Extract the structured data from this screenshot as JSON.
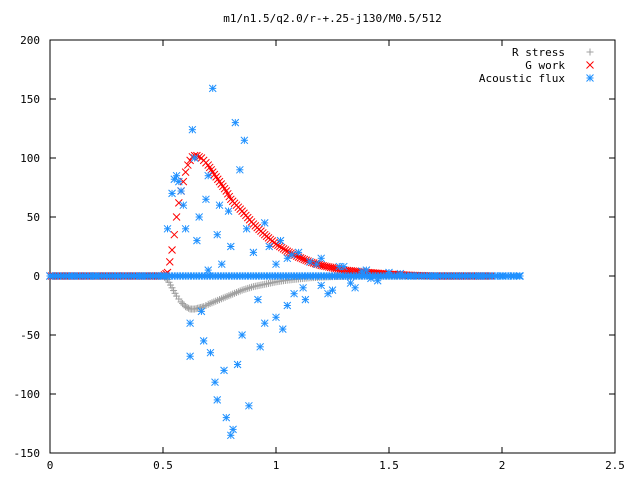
{
  "chart_data": {
    "type": "scatter",
    "title": "m1/n1.5/q2.0/r-+.25-j130/M0.5/512",
    "xlabel": "",
    "ylabel": "",
    "xlim": [
      0,
      2.5
    ],
    "ylim": [
      -150,
      200
    ],
    "x_ticks": [
      0,
      0.5,
      1,
      1.5,
      2,
      2.5
    ],
    "x_tick_labels": [
      "0",
      "0.5",
      "1",
      "1.5",
      "2",
      "2.5"
    ],
    "y_ticks": [
      -150,
      -100,
      -50,
      0,
      50,
      100,
      150,
      200
    ],
    "y_tick_labels": [
      "-150",
      "-100",
      "-50",
      "0",
      "50",
      "100",
      "150",
      "200"
    ],
    "grid": false,
    "legend_position": "top-right",
    "series": [
      {
        "name": "R stress",
        "marker": "plus",
        "color": "#a0a0a0",
        "x": [
          0.0,
          0.2,
          0.4,
          0.5,
          0.52,
          0.54,
          0.56,
          0.58,
          0.6,
          0.62,
          0.64,
          0.66,
          0.68,
          0.7,
          0.75,
          0.8,
          0.85,
          0.9,
          0.95,
          1.0,
          1.05,
          1.1,
          1.15,
          1.2,
          1.25,
          1.3,
          1.35,
          1.4,
          1.5,
          1.6,
          1.7,
          1.8,
          1.9,
          1.95
        ],
        "y": [
          0,
          0,
          0,
          0,
          -3,
          -10,
          -17,
          -22,
          -26,
          -28,
          -28,
          -27,
          -26,
          -24,
          -20,
          -16,
          -12,
          -9,
          -7,
          -5,
          -3.5,
          -2.5,
          -1.5,
          -1,
          -0.5,
          -0.3,
          0,
          0,
          0,
          0,
          0,
          0,
          0,
          0
        ]
      },
      {
        "name": "G work",
        "marker": "cross",
        "color": "#ff0000",
        "x": [
          0.0,
          0.2,
          0.4,
          0.5,
          0.52,
          0.53,
          0.54,
          0.55,
          0.56,
          0.57,
          0.58,
          0.59,
          0.6,
          0.61,
          0.62,
          0.63,
          0.64,
          0.65,
          0.66,
          0.67,
          0.68,
          0.7,
          0.72,
          0.75,
          0.78,
          0.8,
          0.85,
          0.9,
          0.95,
          1.0,
          1.05,
          1.1,
          1.15,
          1.2,
          1.25,
          1.3,
          1.35,
          1.4,
          1.5,
          1.6,
          1.7,
          1.8,
          1.9,
          1.95
        ],
        "y": [
          0,
          0,
          0,
          0,
          3,
          12,
          22,
          35,
          50,
          62,
          72,
          80,
          88,
          94,
          98,
          101,
          102,
          102,
          101,
          100,
          98,
          94,
          88,
          80,
          72,
          65,
          55,
          44,
          35,
          27,
          21,
          16,
          12,
          9,
          7,
          5,
          4,
          3,
          1.5,
          0.5,
          0,
          0,
          0,
          0
        ]
      },
      {
        "name": "Acoustic flux",
        "marker": "star",
        "color": "#1e90ff",
        "x": [
          0.0,
          0.1,
          0.2,
          0.3,
          0.4,
          0.5,
          0.52,
          0.54,
          0.55,
          0.56,
          0.57,
          0.58,
          0.59,
          0.6,
          0.62,
          0.63,
          0.65,
          0.66,
          0.68,
          0.7,
          0.7,
          0.72,
          0.73,
          0.74,
          0.75,
          0.76,
          0.78,
          0.8,
          0.8,
          0.82,
          0.83,
          0.84,
          0.85,
          0.86,
          0.88,
          0.9,
          0.92,
          0.95,
          0.95,
          1.0,
          1.0,
          1.02,
          1.05,
          1.05,
          1.08,
          1.1,
          1.12,
          1.15,
          1.2,
          1.2,
          1.25,
          1.3,
          1.35,
          1.4,
          1.45,
          1.5,
          1.55,
          1.6,
          1.7,
          1.8,
          1.9,
          2.0,
          2.05,
          2.08,
          0.62,
          0.64,
          0.67,
          0.69,
          0.71,
          0.74,
          0.77,
          0.79,
          0.81,
          0.87,
          0.93,
          0.97,
          1.03,
          1.07,
          1.13,
          1.18,
          1.23,
          1.28,
          1.33,
          1.38,
          1.42
        ],
        "y": [
          0,
          0,
          0,
          0,
          0,
          0,
          40,
          70,
          82,
          85,
          80,
          72,
          60,
          40,
          -68,
          124,
          30,
          50,
          -55,
          85,
          5,
          159,
          -90,
          -105,
          60,
          10,
          -120,
          -135,
          25,
          130,
          -75,
          90,
          -50,
          115,
          -110,
          20,
          -20,
          -40,
          45,
          10,
          -35,
          30,
          -25,
          15,
          -15,
          20,
          -10,
          12,
          -8,
          15,
          -12,
          8,
          -10,
          5,
          -4,
          3,
          2,
          0,
          0,
          0,
          0,
          0,
          0,
          0,
          -40,
          100,
          -30,
          65,
          -65,
          35,
          -80,
          55,
          -130,
          40,
          -60,
          25,
          -45,
          18,
          -20,
          10,
          -15,
          8,
          -6,
          4,
          -2
        ]
      }
    ]
  }
}
